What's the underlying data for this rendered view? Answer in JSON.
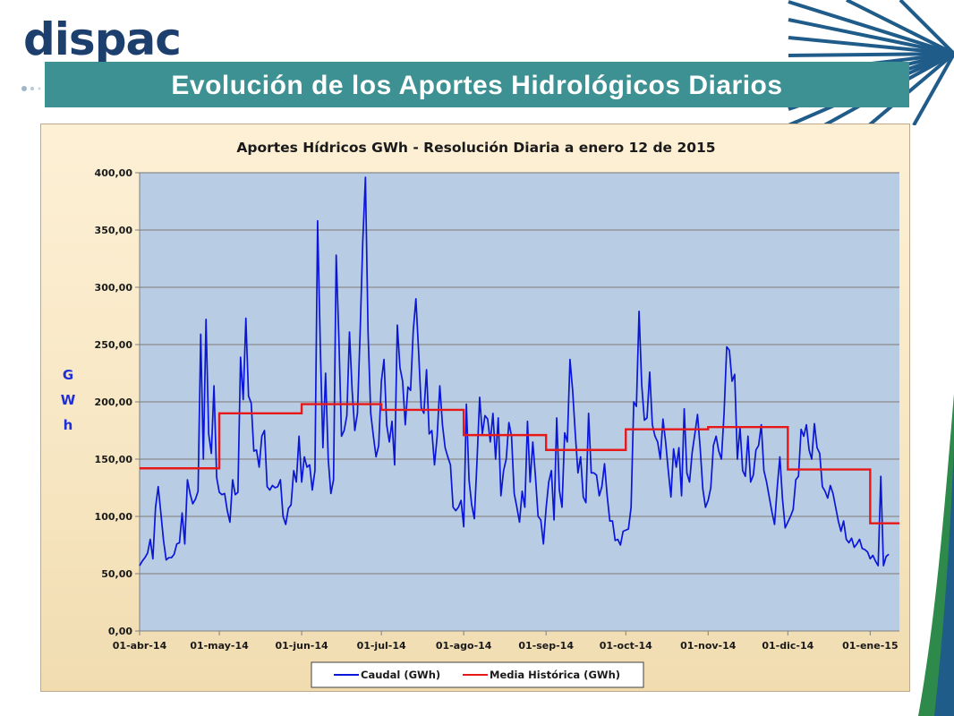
{
  "header": {
    "logo_text": "dispac",
    "title": "Evolución de los Aportes Hidrológicos Diarios"
  },
  "colors": {
    "title_bar": "#3d9192",
    "plot_area": "#b8cce4",
    "caudal": "#0a16d8",
    "media": "#e61818"
  },
  "chart_data": {
    "type": "line",
    "title": "Aportes Hídricos GWh  - Resolución Diaria a enero 12 de 2015",
    "ylabel": "GWh",
    "xlabel": "",
    "ylim": [
      0,
      400
    ],
    "ytick_labels": [
      "0,00",
      "50,00",
      "100,00",
      "150,00",
      "200,00",
      "250,00",
      "300,00",
      "350,00",
      "400,00"
    ],
    "x_start": "01-abr-14",
    "x_end": "12-ene-15",
    "xtick_labels": [
      "01-abr-14",
      "01-may-14",
      "01-jun-14",
      "01-jul-14",
      "01-ago-14",
      "01-sep-14",
      "01-oct-14",
      "01-nov-14",
      "01-dic-14",
      "01-ene-15"
    ],
    "grid": true,
    "legend_position": "bottom",
    "series": [
      {
        "name": "Caudal (GWh)",
        "values": [
          57,
          61,
          64,
          68,
          80,
          63,
          108,
          126,
          103,
          79,
          62,
          64,
          64,
          67,
          76,
          77,
          103,
          76,
          132,
          120,
          111,
          115,
          122,
          259,
          150,
          272,
          172,
          155,
          214,
          134,
          121,
          119,
          120,
          105,
          95,
          132,
          119,
          121,
          239,
          202,
          273,
          205,
          199,
          157,
          158,
          143,
          170,
          175,
          126,
          123,
          127,
          125,
          126,
          132,
          100,
          93,
          107,
          110,
          140,
          130,
          170,
          130,
          152,
          143,
          145,
          123,
          140,
          358,
          250,
          160,
          225,
          150,
          120,
          132,
          328,
          256,
          170,
          175,
          188,
          261,
          210,
          175,
          190,
          260,
          340,
          396,
          260,
          190,
          170,
          152,
          162,
          218,
          237,
          180,
          165,
          183,
          145,
          267,
          230,
          218,
          180,
          213,
          210,
          262,
          290,
          245,
          195,
          190,
          228,
          172,
          175,
          145,
          170,
          214,
          180,
          160,
          152,
          145,
          108,
          105,
          108,
          114,
          91,
          198,
          132,
          110,
          98,
          148,
          204,
          172,
          188,
          185,
          165,
          190,
          150,
          186,
          118,
          140,
          150,
          182,
          170,
          120,
          108,
          95,
          122,
          108,
          183,
          130,
          165,
          135,
          100,
          97,
          76,
          107,
          130,
          140,
          97,
          186,
          123,
          108,
          173,
          165,
          237,
          210,
          172,
          138,
          152,
          117,
          112,
          190,
          138,
          138,
          136,
          118,
          126,
          146,
          118,
          96,
          96,
          79,
          80,
          75,
          87,
          88,
          89,
          108,
          200,
          196,
          279,
          215,
          184,
          186,
          226,
          180,
          170,
          165,
          150,
          185,
          165,
          140,
          117,
          159,
          143,
          160,
          118,
          194,
          138,
          130,
          156,
          172,
          189,
          160,
          124,
          108,
          114,
          125,
          162,
          170,
          157,
          150,
          190,
          248,
          245,
          218,
          224,
          150,
          178,
          140,
          135,
          170,
          130,
          136,
          158,
          162,
          180,
          140,
          130,
          117,
          104,
          93,
          125,
          152,
          115,
          90,
          95,
          100,
          106,
          132,
          135,
          176,
          170,
          180,
          158,
          150,
          181,
          160,
          155,
          126,
          122,
          116,
          127,
          120,
          108,
          96,
          87,
          96,
          80,
          77,
          81,
          73,
          76,
          80,
          72,
          71,
          69,
          63,
          66,
          61,
          57,
          135,
          57,
          65,
          67
        ]
      },
      {
        "name": "Media Histórica (GWh)",
        "steps": [
          {
            "from": "01-abr-14",
            "value": 142
          },
          {
            "from": "01-may-14",
            "value": 190
          },
          {
            "from": "01-jun-14",
            "value": 198
          },
          {
            "from": "01-jul-14",
            "value": 193
          },
          {
            "from": "01-ago-14",
            "value": 171
          },
          {
            "from": "01-sep-14",
            "value": 158
          },
          {
            "from": "01-oct-14",
            "value": 176
          },
          {
            "from": "01-nov-14",
            "value": 178
          },
          {
            "from": "01-dic-14",
            "value": 141
          },
          {
            "from": "01-ene-15",
            "value": 94
          }
        ]
      }
    ]
  }
}
